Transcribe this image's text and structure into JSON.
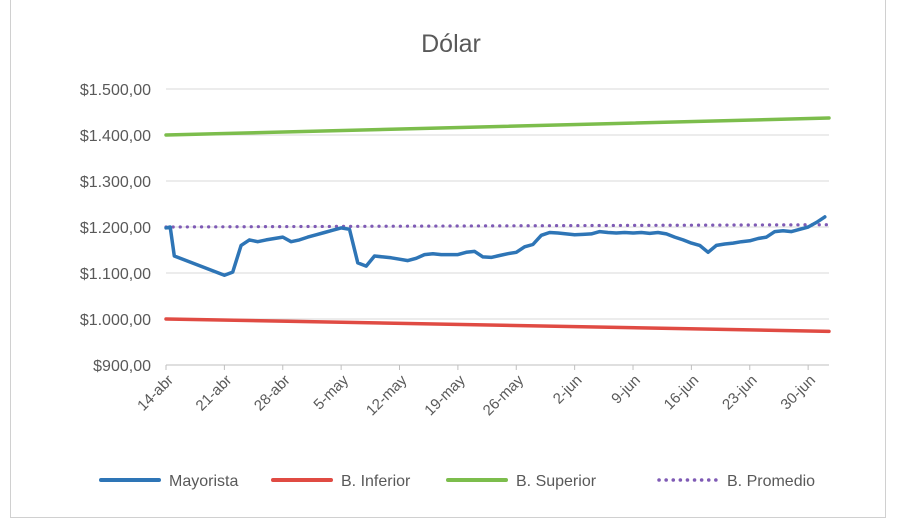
{
  "chart_data": {
    "type": "line",
    "title": "Dólar",
    "ylim": [
      900,
      1500
    ],
    "yticks": [
      900,
      1000,
      1100,
      1200,
      1300,
      1400,
      1500
    ],
    "ytick_labels": [
      "$900,00",
      "$1.000,00",
      "$1.100,00",
      "$1.200,00",
      "$1.300,00",
      "$1.400,00",
      "$1.500,00"
    ],
    "x_labels": [
      "14-abr",
      "21-abr",
      "28-abr",
      "5-may",
      "12-may",
      "19-may",
      "26-may",
      "2-jun",
      "9-jun",
      "16-jun",
      "23-jun",
      "30-jun"
    ],
    "x_label_days": [
      0,
      7,
      14,
      21,
      28,
      35,
      42,
      49,
      56,
      63,
      70,
      77
    ],
    "xlim": [
      0,
      79.5
    ],
    "grid": true,
    "legend_position": "bottom",
    "series": [
      {
        "name": "Mayorista",
        "color": "#2e75b6",
        "style": "solid",
        "x": [
          0,
          0.5,
          1,
          7,
          8,
          9,
          10,
          11,
          12,
          13,
          14,
          15,
          16,
          17,
          18,
          19,
          20,
          21,
          22,
          23,
          24,
          25,
          26,
          27,
          28,
          29,
          30,
          31,
          32,
          33,
          34,
          35,
          36,
          37,
          38,
          39,
          40,
          41,
          42,
          43,
          44,
          45,
          46,
          47,
          48,
          49,
          50,
          51,
          52,
          53,
          54,
          55,
          56,
          57,
          58,
          59,
          60,
          61,
          62,
          63,
          64,
          65,
          66,
          67,
          68,
          69,
          70,
          71,
          72,
          73,
          74,
          75,
          76,
          77,
          78,
          79
        ],
        "values": [
          1198,
          1200,
          1137,
          1095,
          1102,
          1160,
          1172,
          1168,
          1172,
          1175,
          1178,
          1168,
          1172,
          1178,
          1183,
          1188,
          1193,
          1198,
          1195,
          1122,
          1115,
          1137,
          1135,
          1133,
          1130,
          1127,
          1132,
          1140,
          1142,
          1140,
          1140,
          1140,
          1145,
          1147,
          1135,
          1134,
          1138,
          1142,
          1145,
          1157,
          1162,
          1182,
          1188,
          1187,
          1185,
          1183,
          1184,
          1185,
          1190,
          1188,
          1187,
          1188,
          1187,
          1188,
          1186,
          1188,
          1185,
          1178,
          1172,
          1165,
          1160,
          1145,
          1160,
          1163,
          1165,
          1168,
          1170,
          1175,
          1178,
          1190,
          1192,
          1190,
          1195,
          1200,
          1210,
          1222
        ]
      },
      {
        "name": "B. Inferior",
        "color": "#e04b43",
        "style": "solid",
        "x": [
          0,
          79.5
        ],
        "values": [
          1000,
          973
        ]
      },
      {
        "name": "B. Superior",
        "color": "#7cbd4c",
        "style": "solid",
        "x": [
          0,
          79.5
        ],
        "values": [
          1400,
          1437
        ]
      },
      {
        "name": "B. Promedio",
        "color": "#7f5bb5",
        "style": "dotted",
        "x": [
          0,
          79.5
        ],
        "values": [
          1200,
          1205
        ]
      }
    ]
  }
}
